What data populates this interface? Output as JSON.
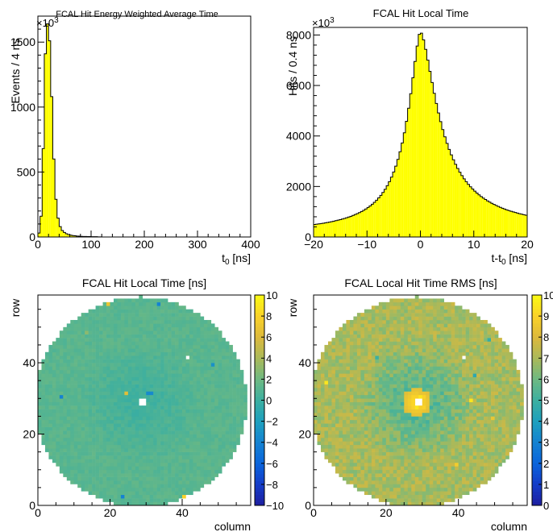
{
  "chart_data": [
    {
      "type": "bar",
      "title": "FCAL Hit Energy Weighted Average Time",
      "xlabel": "t",
      "xlabel_sub": "0",
      "xlabel_unit": " [ns]",
      "ylabel": "Events / 4 ns",
      "exponent_base": "×10",
      "exponent_power": "3",
      "xlim": [
        0,
        400
      ],
      "ylim": [
        0,
        1700
      ],
      "xticks": [
        "0",
        "100",
        "200",
        "300",
        "400"
      ],
      "yticks": [
        "0",
        "500",
        "1000",
        "1500"
      ],
      "bin_width": 4,
      "x_start": 0,
      "fill": "#ffff00",
      "values": [
        30,
        160,
        680,
        1410,
        1640,
        1510,
        1080,
        600,
        290,
        145,
        80,
        50,
        35,
        25,
        18,
        14,
        11,
        9,
        7,
        6,
        5,
        4,
        4,
        3,
        3,
        2,
        2,
        2,
        1,
        1
      ]
    },
    {
      "type": "bar",
      "title": "FCAL Hit Local Time",
      "xlabel": "t-t",
      "xlabel_sub": "0",
      "xlabel_unit": " [ns]",
      "ylabel": "Hits / 0.4 ns",
      "exponent_base": "×10",
      "exponent_power": "3",
      "xlim": [
        -20,
        20
      ],
      "ylim": [
        0,
        8300
      ],
      "xticks": [
        "−20",
        "−10",
        "0",
        "10",
        "20"
      ],
      "yticks": [
        "0",
        "2000",
        "4000",
        "6000",
        "8000"
      ],
      "bin_width": 0.4,
      "x_start": -20,
      "fill": "#ffff00",
      "peak": 8130,
      "left_decay": 3.0,
      "right_decay": 4.3,
      "left_floor": 120,
      "right_floor": 230
    },
    {
      "type": "heatmap",
      "title": "FCAL Hit Local Time [ns]",
      "xlabel": "column",
      "ylabel": "row",
      "xlim": [
        0,
        59
      ],
      "ylim": [
        0,
        59
      ],
      "xticks": [
        "0",
        "20",
        "40"
      ],
      "yticks": [
        "0",
        "20",
        "40"
      ],
      "zlim": [
        -10,
        10
      ],
      "zticks": [
        "−10",
        "−8",
        "−6",
        "−4",
        "−2",
        "0",
        "2",
        "4",
        "6",
        "8",
        "10"
      ],
      "center": [
        28.5,
        29
      ],
      "radius": 29.5,
      "base_value": 1.2,
      "inner_value": 0.3,
      "hole": [
        [
          28,
          28
        ],
        [
          29,
          28
        ],
        [
          28,
          29
        ],
        [
          29,
          29
        ]
      ],
      "empty_cells": [
        [
          41,
          41
        ]
      ],
      "special_cells": [
        [
          24,
          31,
          6.5
        ],
        [
          30,
          31,
          -3.5
        ],
        [
          31,
          31,
          -3.5
        ],
        [
          33,
          56,
          -4
        ],
        [
          45,
          58,
          -3
        ],
        [
          19,
          56,
          7
        ],
        [
          56,
          44,
          -4
        ],
        [
          57,
          41,
          -3
        ],
        [
          40,
          2,
          8
        ],
        [
          23,
          2,
          -4
        ],
        [
          6,
          30,
          -4
        ],
        [
          48,
          39,
          -3
        ],
        [
          13,
          48,
          3
        ],
        [
          53,
          46,
          4
        ]
      ]
    },
    {
      "type": "heatmap",
      "title": "FCAL Local Hit Time RMS [ns]",
      "xlabel": "column",
      "ylabel": "row",
      "xlim": [
        0,
        59
      ],
      "ylim": [
        0,
        59
      ],
      "xticks": [
        "0",
        "20",
        "40"
      ],
      "yticks": [
        "0",
        "20",
        "40"
      ],
      "zlim": [
        0,
        10
      ],
      "zticks": [
        "0",
        "1",
        "2",
        "3",
        "4",
        "5",
        "6",
        "7",
        "8",
        "9",
        "10"
      ],
      "center": [
        28.5,
        29
      ],
      "radius": 29.5,
      "base_value": 7.0,
      "inner_value": 5.6,
      "hole": [
        [
          28,
          28
        ],
        [
          29,
          28
        ],
        [
          28,
          29
        ],
        [
          29,
          29
        ]
      ],
      "empty_cells": [
        [
          41,
          41
        ]
      ],
      "special_cells": [
        [
          3,
          34,
          9.5
        ],
        [
          43,
          29,
          9.5
        ],
        [
          53,
          4,
          9.5
        ],
        [
          39,
          11,
          8.8
        ],
        [
          49,
          24,
          8.5
        ],
        [
          29,
          31,
          8.4
        ],
        [
          13,
          48,
          7.5
        ],
        [
          52,
          56,
          8
        ],
        [
          27,
          27,
          9.0
        ],
        [
          30,
          27,
          9.0
        ],
        [
          27,
          30,
          9.0
        ],
        [
          30,
          30,
          9.0
        ],
        [
          28,
          27,
          9.5
        ],
        [
          29,
          30,
          9.5
        ],
        [
          17,
          41,
          5
        ],
        [
          44,
          36,
          4.5
        ],
        [
          48,
          46,
          4.8
        ]
      ]
    }
  ]
}
